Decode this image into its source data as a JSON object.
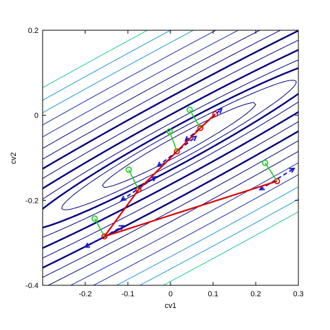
{
  "chart_data": {
    "type": "contour",
    "xlabel": "cv1",
    "ylabel": "cv2",
    "xlim": [
      -0.3,
      0.3
    ],
    "ylim": [
      -0.4,
      0.2
    ],
    "xticks": [
      "-0.2",
      "-0.1",
      "0",
      "0.1",
      "0.2",
      "0.3"
    ],
    "yticks": [
      "-0.4",
      "-0.2",
      "0",
      "0.2"
    ],
    "xtick_values": [
      -0.2,
      -0.1,
      0,
      0.1,
      0.2,
      0.3
    ],
    "ytick_values": [
      -0.4,
      -0.2,
      0,
      0.2
    ],
    "contour_minimum": [
      0.02,
      -0.07
    ],
    "contour_levels": [
      0.003,
      0.007,
      0.012,
      0.02,
      0.035,
      0.055,
      0.08,
      0.11,
      0.15,
      0.2,
      0.26,
      0.33,
      0.41,
      0.5
    ],
    "emphasized_levels": [
      0.012,
      0.035,
      0.08
    ],
    "series": [
      {
        "kind": "path",
        "color": "#dd0000",
        "points": [
          [
            0.25,
            -0.155
          ],
          [
            -0.155,
            -0.285
          ],
          [
            -0.075,
            -0.175
          ],
          [
            0.015,
            -0.085
          ],
          [
            0.07,
            -0.03
          ],
          [
            0.105,
            0.003
          ]
        ]
      },
      {
        "kind": "probe-points",
        "color": "#22cc22",
        "points": [
          [
            0.222,
            -0.112
          ],
          [
            -0.178,
            -0.243
          ],
          [
            -0.098,
            -0.128
          ],
          [
            -0.002,
            -0.038
          ],
          [
            0.045,
            0.013
          ]
        ]
      },
      {
        "kind": "tangent-arrows",
        "color": "#1a1acc",
        "segments": [
          [
            [
              0.21,
              -0.175
            ],
            [
              0.29,
              -0.125
            ]
          ],
          [
            [
              -0.2,
              -0.31
            ],
            [
              -0.11,
              -0.26
            ]
          ],
          [
            [
              -0.115,
              -0.2
            ],
            [
              -0.035,
              -0.145
            ]
          ],
          [
            [
              -0.03,
              -0.12
            ],
            [
              0.06,
              -0.05
            ]
          ],
          [
            [
              0.035,
              -0.06
            ],
            [
              0.12,
              0.015
            ]
          ]
        ]
      }
    ],
    "colors": {
      "contour_dark": "#000080",
      "contour_mid": "#1a2ca8",
      "contour_light": "#1c9ad0",
      "contour_lightest": "#20c98f"
    }
  }
}
